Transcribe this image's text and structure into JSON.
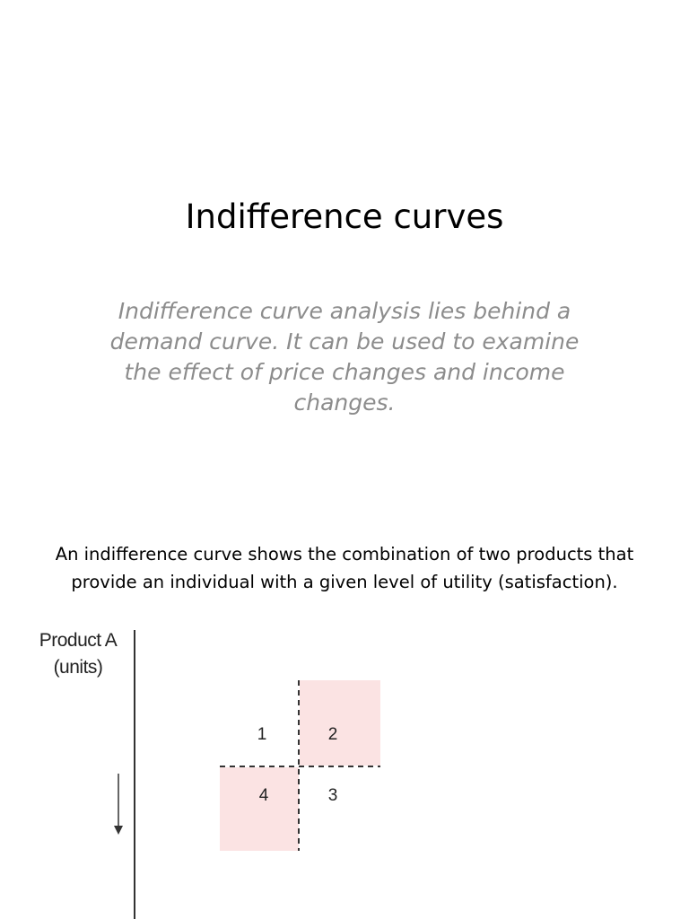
{
  "slide": {
    "title": "Indifference curves",
    "subtitle": "Indifference curve analysis lies behind a demand curve. It can be used to examine the effect of price changes and income changes.",
    "body": "An indifference curve shows the combination of two products that provide an individual with a given level of utility (satisfaction)."
  },
  "diagram": {
    "y_axis_label_line1": "Product A",
    "y_axis_label_line2": "(units)",
    "quadrants": [
      "1",
      "2",
      "3",
      "4"
    ],
    "shaded_quadrants": [
      "2",
      "4"
    ],
    "shade_color": "#fbe3e3",
    "line_color": "#333333"
  }
}
